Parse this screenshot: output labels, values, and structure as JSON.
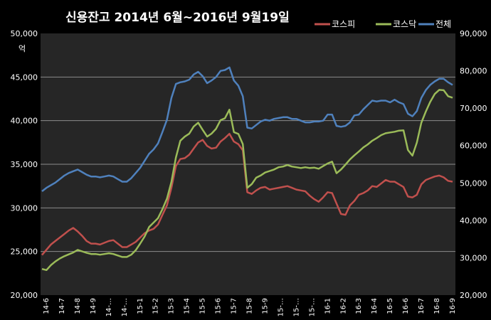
{
  "chart_data": {
    "type": "line",
    "title": "신용잔고  2014년 6월~2016년 9월19일",
    "left_axis": {
      "unit": "억",
      "ylim": [
        20000,
        50000
      ],
      "ticks": [
        "20,000",
        "25,000",
        "30,000",
        "35,000",
        "40,000",
        "45,000",
        "50,000"
      ]
    },
    "right_axis": {
      "ylim": [
        20000,
        90000
      ],
      "ticks": [
        "20,000",
        "30,000",
        "40,000",
        "50,000",
        "60,000",
        "70,000",
        "80,000",
        "90,000"
      ]
    },
    "x_tick_labels": [
      "14-6",
      "14-7",
      "14-8",
      "14-9",
      "14-…",
      "14-…",
      "15-1",
      "15-2",
      "15-3",
      "15-4",
      "15-5",
      "15-6",
      "15-7",
      "15-8",
      "15-9",
      "15-…",
      "15-…",
      "15-…",
      "16-1",
      "16-2",
      "16-3",
      "16-4",
      "16-5",
      "16-6",
      "16-7",
      "16-8",
      "16-9"
    ],
    "grid": true,
    "legend_position": "top-right",
    "series": [
      {
        "name": "코스피",
        "axis": "left",
        "color": "#c0504d",
        "values": [
          24600,
          25200,
          25800,
          26200,
          26600,
          27000,
          27400,
          27700,
          27300,
          26800,
          26200,
          25900,
          25900,
          25800,
          26000,
          26200,
          26300,
          25900,
          25500,
          25500,
          25800,
          26100,
          26600,
          27100,
          27400,
          27600,
          28100,
          29200,
          30300,
          32300,
          34800,
          35600,
          35700,
          36100,
          36800,
          37500,
          37800,
          37100,
          36800,
          36900,
          37600,
          38000,
          38500,
          37600,
          37300,
          36600,
          31800,
          31600,
          32000,
          32300,
          32400,
          32100,
          32200,
          32300,
          32400,
          32500,
          32300,
          32100,
          32000,
          31900,
          31400,
          31000,
          30700,
          31200,
          31800,
          31700,
          30500,
          29300,
          29200,
          30300,
          30800,
          31500,
          31700,
          32000,
          32500,
          32400,
          32800,
          33200,
          33000,
          33000,
          32700,
          32400,
          31300,
          31200,
          31500,
          32700,
          33200,
          33400,
          33600,
          33700,
          33500,
          33100,
          33000
        ]
      },
      {
        "name": "코스닥",
        "axis": "right",
        "color": "#9bbb59",
        "values": [
          27000,
          26700,
          28000,
          29000,
          29800,
          30400,
          30900,
          31400,
          32100,
          31700,
          31300,
          31000,
          31000,
          30800,
          31000,
          31200,
          31000,
          30600,
          30200,
          30200,
          30800,
          32000,
          33800,
          35700,
          38200,
          39400,
          40600,
          43000,
          45800,
          50300,
          56800,
          61300,
          62400,
          63200,
          65100,
          66100,
          64200,
          62400,
          63200,
          64500,
          66800,
          67300,
          69600,
          63600,
          63100,
          60400,
          48700,
          49700,
          51400,
          52000,
          52800,
          53200,
          53600,
          54200,
          54400,
          54800,
          54400,
          54200,
          54000,
          54200,
          54000,
          54100,
          53800,
          54500,
          55200,
          55700,
          52600,
          53600,
          54900,
          56300,
          57400,
          58400,
          59500,
          60300,
          61300,
          62000,
          62800,
          63300,
          63500,
          63700,
          64000,
          64100,
          58800,
          57300,
          60800,
          66100,
          69100,
          71700,
          73800,
          74900,
          74800,
          73200,
          72800
        ]
      },
      {
        "name": "전체",
        "axis": "left",
        "color": "#4f81bd",
        "values": [
          31900,
          32300,
          32600,
          32900,
          33300,
          33700,
          34000,
          34200,
          34400,
          34100,
          33800,
          33600,
          33600,
          33500,
          33600,
          33700,
          33600,
          33300,
          33000,
          33000,
          33400,
          34000,
          34600,
          35400,
          36200,
          36700,
          37400,
          38700,
          40100,
          42600,
          44200,
          44400,
          44500,
          44700,
          45300,
          45600,
          45100,
          44300,
          44600,
          45000,
          45700,
          45800,
          46100,
          44600,
          44000,
          42800,
          39200,
          39100,
          39500,
          39900,
          40100,
          40000,
          40200,
          40300,
          40400,
          40400,
          40200,
          40200,
          40000,
          39800,
          39800,
          39900,
          39900,
          40000,
          40700,
          40700,
          39400,
          39300,
          39400,
          39800,
          40600,
          40700,
          41300,
          41800,
          42300,
          42200,
          42300,
          42300,
          42100,
          42400,
          42100,
          41900,
          40800,
          40500,
          41100,
          42600,
          43500,
          44100,
          44500,
          44800,
          44800,
          44400,
          44100
        ]
      }
    ]
  }
}
